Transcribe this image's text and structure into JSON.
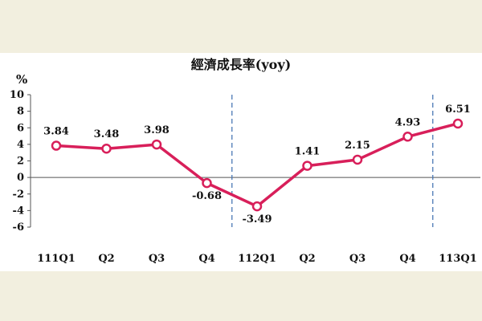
{
  "colors": {
    "background": "#f2efdf",
    "panel": "#ffffff",
    "line": "#d81f5a",
    "marker_fill": "#ffffff",
    "axis": "#555555",
    "divider": "#4a78b5"
  },
  "chart_data": {
    "type": "line",
    "title": "經濟成長率(yoy)",
    "ylabel": "%",
    "xlabel": "",
    "categories": [
      "111Q1",
      "Q2",
      "Q3",
      "Q4",
      "112Q1",
      "Q2",
      "Q3",
      "Q4",
      "113Q1"
    ],
    "series": [
      {
        "values": [
          3.84,
          3.48,
          3.98,
          -0.68,
          -3.49,
          1.41,
          2.15,
          4.93,
          6.51
        ]
      }
    ],
    "data_labels": [
      "3.84",
      "3.48",
      "3.98",
      "-0.68",
      "-3.49",
      "1.41",
      "2.15",
      "4.93",
      "6.51"
    ],
    "ylim": [
      -6,
      10
    ],
    "yticks": [
      "10",
      "8",
      "6",
      "4",
      "2",
      "0",
      "-2",
      "-4",
      "-6"
    ],
    "ytick_values": [
      10,
      8,
      6,
      4,
      2,
      0,
      -2,
      -4,
      -6
    ],
    "year_dividers_between": [
      [
        3,
        4
      ],
      [
        7,
        8
      ]
    ],
    "grid": false,
    "legend": "none"
  }
}
